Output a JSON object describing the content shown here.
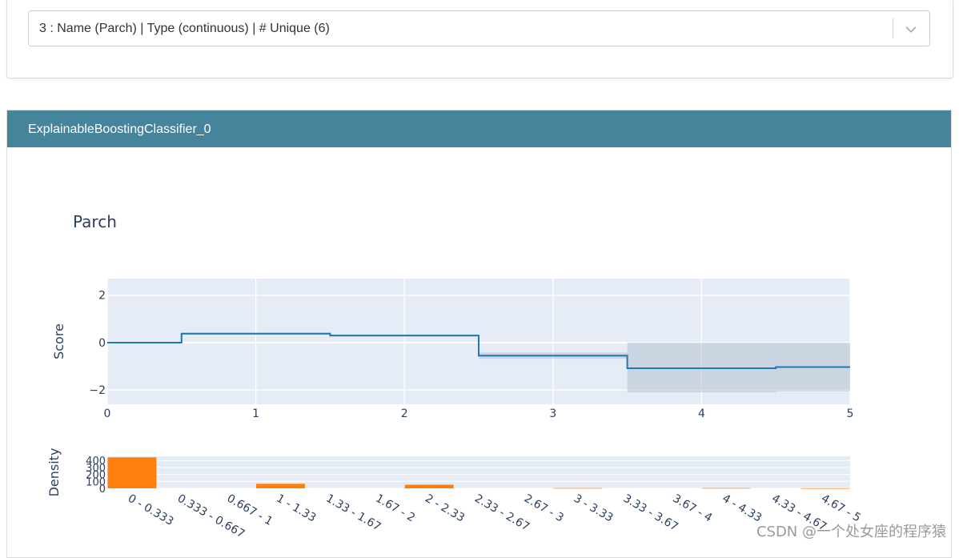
{
  "selector": {
    "value": "3 : Name (Parch) | Type (continuous) | # Unique (6)",
    "chevron_icon": "chevron-down-icon"
  },
  "card": {
    "title": "ExplainableBoostingClassifier_0"
  },
  "watermark": "CSDN @一个处女座的程序猿",
  "colors": {
    "header_bg": "#46849c",
    "plot_bg": "#e5ecf6",
    "score_line": "#1f77b4",
    "error_band": "#aab8c8",
    "density_bar": "#ff7f0e",
    "text": "#2a3f5f"
  },
  "chart_data": [
    {
      "type": "line",
      "title": "Parch",
      "xlabel": "",
      "ylabel": "Score",
      "xlim": [
        0,
        5
      ],
      "ylim": [
        -2.6,
        2.7
      ],
      "x_ticks": [
        "0",
        "1",
        "2",
        "3",
        "4",
        "5"
      ],
      "y_ticks": [
        "2",
        "0",
        "−2"
      ],
      "y_tick_values": [
        2,
        0,
        -2
      ],
      "grid": true,
      "line_shape": "step",
      "bin_edges": [
        0,
        0.5,
        1.5,
        2.5,
        3.5,
        4.5,
        5
      ],
      "series": [
        {
          "values": [
            0.0,
            0.38,
            0.3,
            -0.55,
            -1.08,
            -1.03
          ]
        }
      ],
      "error_band": {
        "upper": [
          0.0,
          0.42,
          0.34,
          -0.42,
          0.0,
          0.0
        ],
        "lower": [
          0.0,
          0.34,
          0.26,
          -0.68,
          -2.1,
          -2.05
        ]
      }
    },
    {
      "type": "bar",
      "xlabel": "",
      "ylabel": "Density",
      "categories": [
        "0 - 0.333",
        "0.333 - 0.667",
        "0.667 - 1",
        "1 - 1.33",
        "1.33 - 1.67",
        "1.67 - 2",
        "2 - 2.33",
        "2.33 - 2.67",
        "2.67 - 3",
        "3 - 3.33",
        "3.33 - 3.67",
        "3.67 - 4",
        "4 - 4.33",
        "4.33 - 4.67",
        "4.67 - 5"
      ],
      "values": [
        445,
        0,
        0,
        66,
        0,
        0,
        52,
        0,
        0,
        3,
        0,
        0,
        4,
        0,
        1
      ],
      "ylim": [
        0,
        460
      ],
      "y_ticks": [
        "0",
        "100",
        "200",
        "300",
        "400"
      ],
      "y_tick_values": [
        0,
        100,
        200,
        300,
        400
      ],
      "grid": true
    }
  ]
}
